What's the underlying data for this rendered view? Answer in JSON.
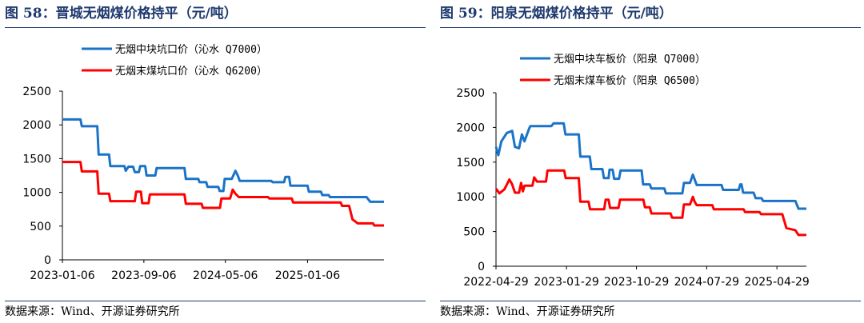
{
  "figures": [
    {
      "title": "图 58：晋城无烟煤价格持平（元/吨）",
      "source": "数据来源：Wind、开源证券研究所"
    },
    {
      "title": "图 59：阳泉无烟煤价格持平（元/吨）",
      "source": "数据来源：Wind、开源证券研究所"
    }
  ],
  "colors": {
    "series_1": "#1a73c8",
    "series_2": "#ff0000",
    "title": "#1f3a6e"
  },
  "chart_data": [
    {
      "type": "line",
      "title": "晋城无烟煤价格持平（元/吨）",
      "ylim": [
        0,
        2500
      ],
      "yticks": [
        "0",
        "500",
        "1000",
        "1500",
        "2000",
        "2500"
      ],
      "xlim": [
        "2023-01-06",
        "2025-08-22"
      ],
      "xticks": [
        "2023-01-06",
        "2023-09-06",
        "2024-05-06",
        "2025-01-06"
      ],
      "grid": false,
      "legend_position": "top-center",
      "series": [
        {
          "name": "无烟中块坑口价（沁水 Q7000）",
          "points": [
            [
              "2023-01-06",
              2080
            ],
            [
              "2023-03-01",
              2080
            ],
            [
              "2023-03-05",
              1980
            ],
            [
              "2023-04-20",
              1980
            ],
            [
              "2023-04-24",
              1560
            ],
            [
              "2023-05-25",
              1560
            ],
            [
              "2023-05-29",
              1390
            ],
            [
              "2023-07-10",
              1390
            ],
            [
              "2023-07-14",
              1320
            ],
            [
              "2023-07-22",
              1380
            ],
            [
              "2023-08-05",
              1380
            ],
            [
              "2023-08-10",
              1300
            ],
            [
              "2023-08-22",
              1300
            ],
            [
              "2023-08-26",
              1390
            ],
            [
              "2023-09-10",
              1390
            ],
            [
              "2023-09-14",
              1250
            ],
            [
              "2023-10-10",
              1250
            ],
            [
              "2023-10-14",
              1360
            ],
            [
              "2024-01-05",
              1360
            ],
            [
              "2024-01-09",
              1200
            ],
            [
              "2024-02-15",
              1200
            ],
            [
              "2024-02-19",
              1150
            ],
            [
              "2024-03-10",
              1150
            ],
            [
              "2024-03-14",
              1080
            ],
            [
              "2024-04-15",
              1080
            ],
            [
              "2024-04-19",
              1020
            ],
            [
              "2024-04-30",
              1020
            ],
            [
              "2024-05-04",
              1200
            ],
            [
              "2024-05-25",
              1200
            ],
            [
              "2024-06-05",
              1320
            ],
            [
              "2024-06-12",
              1250
            ],
            [
              "2024-06-18",
              1170
            ],
            [
              "2024-09-20",
              1170
            ],
            [
              "2024-09-24",
              1150
            ],
            [
              "2024-10-28",
              1150
            ],
            [
              "2024-11-01",
              1230
            ],
            [
              "2024-11-12",
              1230
            ],
            [
              "2024-11-16",
              1100
            ],
            [
              "2025-01-06",
              1100
            ],
            [
              "2025-01-10",
              1010
            ],
            [
              "2025-02-15",
              1010
            ],
            [
              "2025-02-19",
              960
            ],
            [
              "2025-03-10",
              960
            ],
            [
              "2025-03-14",
              930
            ],
            [
              "2025-07-01",
              930
            ],
            [
              "2025-07-12",
              860
            ],
            [
              "2025-08-22",
              860
            ]
          ]
        },
        {
          "name": "无烟末煤坑口价（沁水 Q6200）",
          "points": [
            [
              "2023-01-06",
              1450
            ],
            [
              "2023-03-01",
              1450
            ],
            [
              "2023-03-05",
              1310
            ],
            [
              "2023-04-20",
              1310
            ],
            [
              "2023-04-24",
              980
            ],
            [
              "2023-05-25",
              980
            ],
            [
              "2023-05-29",
              870
            ],
            [
              "2023-08-10",
              870
            ],
            [
              "2023-08-14",
              1010
            ],
            [
              "2023-08-28",
              1010
            ],
            [
              "2023-09-01",
              840
            ],
            [
              "2023-09-20",
              840
            ],
            [
              "2023-09-24",
              970
            ],
            [
              "2024-01-05",
              970
            ],
            [
              "2024-01-09",
              830
            ],
            [
              "2024-02-25",
              830
            ],
            [
              "2024-02-29",
              770
            ],
            [
              "2024-04-20",
              770
            ],
            [
              "2024-04-24",
              910
            ],
            [
              "2024-05-20",
              910
            ],
            [
              "2024-05-28",
              1040
            ],
            [
              "2024-06-05",
              980
            ],
            [
              "2024-06-15",
              930
            ],
            [
              "2024-09-10",
              930
            ],
            [
              "2024-09-14",
              910
            ],
            [
              "2024-11-20",
              910
            ],
            [
              "2024-11-24",
              850
            ],
            [
              "2025-04-15",
              850
            ],
            [
              "2025-04-19",
              800
            ],
            [
              "2025-05-10",
              800
            ],
            [
              "2025-05-20",
              600
            ],
            [
              "2025-06-05",
              540
            ],
            [
              "2025-07-20",
              540
            ],
            [
              "2025-07-24",
              510
            ],
            [
              "2025-08-22",
              510
            ]
          ]
        }
      ]
    },
    {
      "type": "line",
      "title": "阳泉无烟煤价格持平（元/吨）",
      "ylim": [
        0,
        2500
      ],
      "yticks": [
        "0",
        "500",
        "1000",
        "1500",
        "2000",
        "2500"
      ],
      "xlim": [
        "2022-04-29",
        "2025-08-22"
      ],
      "xticks": [
        "2022-04-29",
        "2023-01-29",
        "2023-10-29",
        "2024-07-29",
        "2025-04-29"
      ],
      "grid": false,
      "legend_position": "top-center",
      "series": [
        {
          "name": "无烟中块车板价（阳泉 Q7000）",
          "points": [
            [
              "2022-04-29",
              1720
            ],
            [
              "2022-05-08",
              1600
            ],
            [
              "2022-05-20",
              1800
            ],
            [
              "2022-06-10",
              1920
            ],
            [
              "2022-07-01",
              1950
            ],
            [
              "2022-07-12",
              1720
            ],
            [
              "2022-07-28",
              1700
            ],
            [
              "2022-08-08",
              1900
            ],
            [
              "2022-08-18",
              1800
            ],
            [
              "2022-09-05",
              1980
            ],
            [
              "2022-09-10",
              2020
            ],
            [
              "2022-12-01",
              2020
            ],
            [
              "2022-12-10",
              2060
            ],
            [
              "2023-01-18",
              2060
            ],
            [
              "2023-01-25",
              1900
            ],
            [
              "2023-03-18",
              1900
            ],
            [
              "2023-03-24",
              1580
            ],
            [
              "2023-04-30",
              1580
            ],
            [
              "2023-05-06",
              1400
            ],
            [
              "2023-06-18",
              1400
            ],
            [
              "2023-06-24",
              1270
            ],
            [
              "2023-07-12",
              1270
            ],
            [
              "2023-07-16",
              1390
            ],
            [
              "2023-07-28",
              1390
            ],
            [
              "2023-08-03",
              1260
            ],
            [
              "2023-08-22",
              1260
            ],
            [
              "2023-08-28",
              1380
            ],
            [
              "2023-11-18",
              1380
            ],
            [
              "2023-11-24",
              1180
            ],
            [
              "2023-12-20",
              1180
            ],
            [
              "2023-12-26",
              1120
            ],
            [
              "2024-02-15",
              1120
            ],
            [
              "2024-02-21",
              1050
            ],
            [
              "2024-04-25",
              1050
            ],
            [
              "2024-05-01",
              1200
            ],
            [
              "2024-05-25",
              1200
            ],
            [
              "2024-06-05",
              1320
            ],
            [
              "2024-06-12",
              1250
            ],
            [
              "2024-06-20",
              1170
            ],
            [
              "2024-09-25",
              1170
            ],
            [
              "2024-10-01",
              1100
            ],
            [
              "2024-12-01",
              1100
            ],
            [
              "2024-12-07",
              1180
            ],
            [
              "2024-12-12",
              1180
            ],
            [
              "2024-12-18",
              1060
            ],
            [
              "2025-01-28",
              1060
            ],
            [
              "2025-02-05",
              980
            ],
            [
              "2025-02-28",
              980
            ],
            [
              "2025-03-06",
              940
            ],
            [
              "2025-07-10",
              940
            ],
            [
              "2025-07-22",
              830
            ],
            [
              "2025-08-22",
              830
            ]
          ]
        },
        {
          "name": "无烟末煤车板价（阳泉 Q6500）",
          "points": [
            [
              "2022-04-29",
              1120
            ],
            [
              "2022-05-12",
              1050
            ],
            [
              "2022-06-01",
              1110
            ],
            [
              "2022-06-20",
              1250
            ],
            [
              "2022-07-01",
              1180
            ],
            [
              "2022-07-12",
              1060
            ],
            [
              "2022-07-28",
              1060
            ],
            [
              "2022-08-05",
              1200
            ],
            [
              "2022-08-12",
              1080
            ],
            [
              "2022-08-18",
              1160
            ],
            [
              "2022-09-18",
              1160
            ],
            [
              "2022-09-25",
              1280
            ],
            [
              "2022-10-06",
              1220
            ],
            [
              "2022-11-10",
              1220
            ],
            [
              "2022-11-16",
              1380
            ],
            [
              "2023-01-20",
              1380
            ],
            [
              "2023-01-26",
              1270
            ],
            [
              "2023-03-18",
              1270
            ],
            [
              "2023-03-24",
              930
            ],
            [
              "2023-04-25",
              930
            ],
            [
              "2023-05-01",
              820
            ],
            [
              "2023-06-25",
              820
            ],
            [
              "2023-07-01",
              960
            ],
            [
              "2023-07-12",
              960
            ],
            [
              "2023-07-18",
              840
            ],
            [
              "2023-08-20",
              840
            ],
            [
              "2023-08-26",
              960
            ],
            [
              "2023-11-25",
              960
            ],
            [
              "2023-12-01",
              850
            ],
            [
              "2023-12-20",
              850
            ],
            [
              "2023-12-26",
              760
            ],
            [
              "2024-03-10",
              760
            ],
            [
              "2024-03-16",
              700
            ],
            [
              "2024-04-25",
              700
            ],
            [
              "2024-05-01",
              890
            ],
            [
              "2024-05-25",
              890
            ],
            [
              "2024-06-05",
              1000
            ],
            [
              "2024-06-12",
              930
            ],
            [
              "2024-06-20",
              880
            ],
            [
              "2024-08-20",
              880
            ],
            [
              "2024-08-26",
              820
            ],
            [
              "2024-12-20",
              820
            ],
            [
              "2024-12-26",
              780
            ],
            [
              "2025-02-20",
              780
            ],
            [
              "2025-02-26",
              750
            ],
            [
              "2025-05-20",
              750
            ],
            [
              "2025-06-05",
              550
            ],
            [
              "2025-07-10",
              520
            ],
            [
              "2025-07-22",
              450
            ],
            [
              "2025-08-22",
              450
            ]
          ]
        }
      ]
    }
  ]
}
